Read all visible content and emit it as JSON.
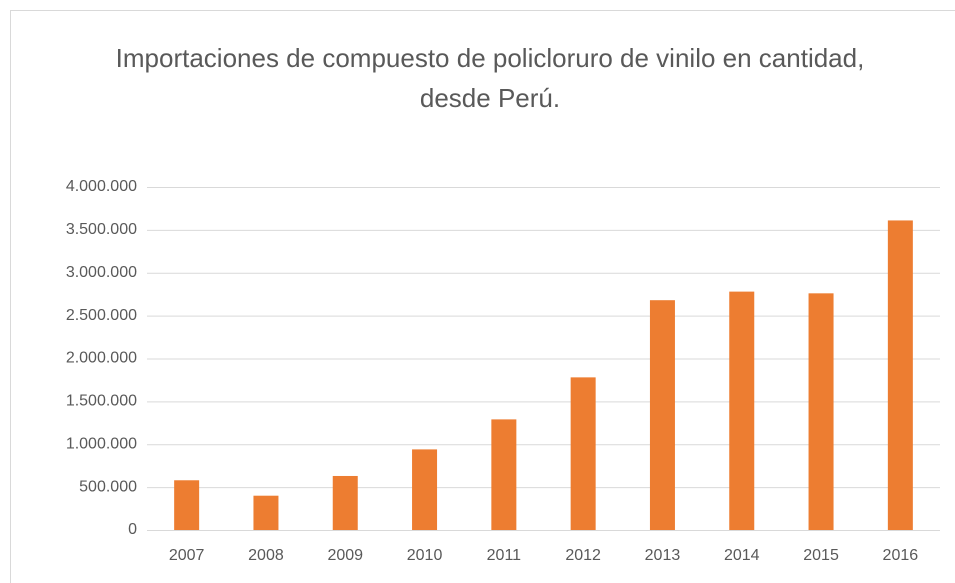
{
  "chart_data": {
    "type": "bar",
    "title": "Importaciones de compuesto de policloruro de vinilo en cantidad, desde Perú.",
    "categories": [
      "2007",
      "2008",
      "2009",
      "2010",
      "2011",
      "2012",
      "2013",
      "2014",
      "2015",
      "2016"
    ],
    "values": [
      580000,
      400000,
      630000,
      940000,
      1290000,
      1780000,
      2680000,
      2780000,
      2760000,
      3610000
    ],
    "color": "#ed7d31",
    "ylim": [
      0,
      4000000
    ],
    "yticks": [
      0,
      {
        "value": 500000,
        "label": "500.000"
      },
      {
        "value": 1000000,
        "label": "1.000.000"
      },
      {
        "value": 1500000,
        "label": "1.500.000"
      },
      {
        "value": 2000000,
        "label": "2.000.000"
      },
      {
        "value": 2500000,
        "label": "2.500.000"
      },
      {
        "value": 3000000,
        "label": "3.000.000"
      },
      {
        "value": 3500000,
        "label": "3.500.000"
      },
      {
        "value": 4000000,
        "label": "4.000.000"
      }
    ],
    "grid": true
  }
}
